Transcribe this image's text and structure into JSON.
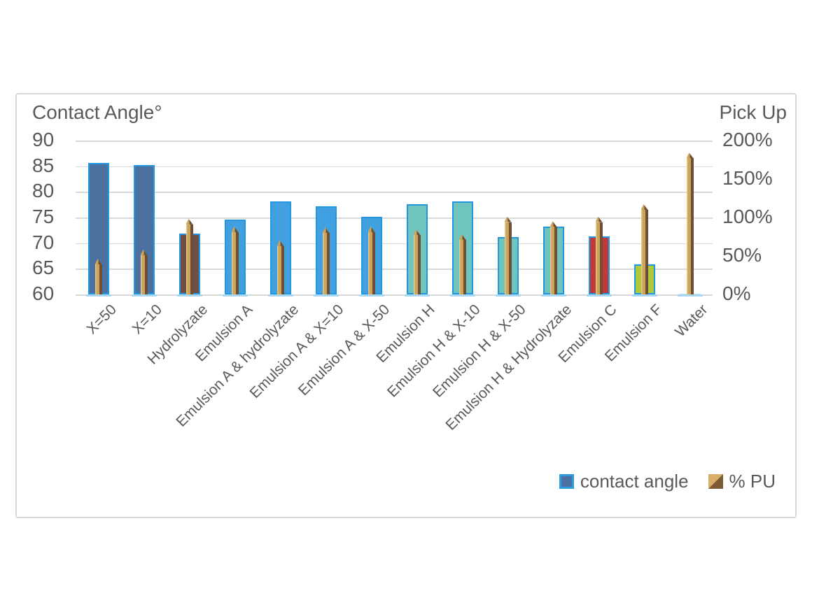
{
  "titles": {
    "left_axis_title": "Contact Angle°",
    "right_axis_title": "Pick Up"
  },
  "legend": {
    "items": [
      {
        "label": "contact angle",
        "swatch": "contact"
      },
      {
        "label": "% PU",
        "swatch": "pu"
      }
    ]
  },
  "palette": {
    "text": "#595959",
    "grid": "#d9d9d9",
    "box_border": "#d8d8d8",
    "bar_border": "#2397df",
    "bar_base_strip": "#a9d7f2",
    "steel_blue": "#4a71a0",
    "brown": "#6e4f44",
    "blue": "#41a1e0",
    "teal": "#6fc4be",
    "red": "#c03a3a",
    "green": "#afca3b",
    "water": "#bde3f7",
    "pu_light": "#e5c78d",
    "pu_mid": "#cca45c",
    "pu_dark": "#6f4e33",
    "legend_pu_light": "#d7af6a",
    "legend_pu_dark": "#7c5c35",
    "legend_contact_fill": "#4a71a0",
    "legend_contact_border": "#2e9bdc"
  },
  "chart_data": {
    "type": "bar",
    "title": "",
    "categories": [
      "X=50",
      "X=10",
      "Hydrolyzate",
      "Emulsion A",
      "Emulsion A & hydrolyzate",
      "Emulsion A & X=10",
      "Emulsion A & X-50",
      "Emulsion H",
      "Emulsion H & X-10",
      "Emulsion H & X-50",
      "Emulsion H & Hydrolyzate",
      "Emulsion C",
      "Emulsion F",
      "Water"
    ],
    "series": [
      {
        "name": "contact angle",
        "axis": "left",
        "values": [
          85.7,
          85.2,
          71.8,
          74.6,
          78.1,
          77.2,
          75.1,
          77.6,
          78.2,
          71.2,
          73.2,
          71.3,
          65.8,
          60.2
        ],
        "color_keys": [
          "steel_blue",
          "steel_blue",
          "brown",
          "blue",
          "blue",
          "blue",
          "blue",
          "teal",
          "teal",
          "teal",
          "teal",
          "red",
          "green",
          "water"
        ]
      },
      {
        "name": "% PU",
        "axis": "right",
        "values": [
          39,
          51,
          91,
          81,
          63,
          80,
          81,
          77,
          71,
          94,
          88,
          94,
          110,
          177
        ]
      }
    ],
    "left_axis": {
      "label": "Contact Angle°",
      "min": 60,
      "max": 90,
      "ticks": [
        90,
        85,
        80,
        75,
        70,
        65,
        60
      ]
    },
    "right_axis": {
      "label": "Pick Up",
      "min": 0,
      "max": 200,
      "ticks": [
        "200%",
        "150%",
        "100%",
        "50%",
        "0%"
      ],
      "tick_values": [
        200,
        150,
        100,
        50,
        0
      ]
    },
    "grid": true,
    "legend_position": "bottom-right"
  }
}
